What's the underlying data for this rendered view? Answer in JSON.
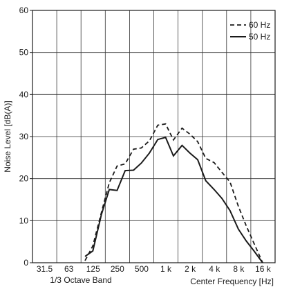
{
  "chart_data": {
    "type": "line",
    "title": "",
    "xlabel": "1/3 Octave Band",
    "xlabel_right": "Center Frequency [Hz]",
    "ylabel": "Noise Level [dB(A)]",
    "ylim": [
      0,
      60
    ],
    "yticks": [
      "0",
      "10",
      "20",
      "30",
      "40",
      "50",
      "60"
    ],
    "x_band_labels": [
      "31.5",
      "63",
      "125",
      "250",
      "500",
      "1 k",
      "2 k",
      "4 k",
      "8 k",
      "16 k"
    ],
    "x_band_frequencies": [
      31.5,
      63,
      125,
      250,
      500,
      1000,
      2000,
      4000,
      8000,
      16000
    ],
    "grid": true,
    "legend_position": "top-right",
    "series": [
      {
        "name": "60 Hz",
        "style": "dashed",
        "color": "#1a1a1a",
        "x": [
          100,
          125,
          160,
          200,
          250,
          315,
          400,
          500,
          630,
          800,
          1000,
          1250,
          1600,
          2000,
          2500,
          3150,
          4000,
          5000,
          6300,
          8000,
          10000,
          12500,
          16000
        ],
        "y": [
          0.5,
          4,
          12,
          19,
          23,
          23.5,
          27,
          27.3,
          29,
          32.7,
          33,
          29.2,
          32,
          30.6,
          28.8,
          24.8,
          23.8,
          21.5,
          19.2,
          13.4,
          8.8,
          4.6,
          0
        ]
      },
      {
        "name": "50 Hz",
        "style": "solid",
        "color": "#1a1a1a",
        "x": [
          100,
          125,
          160,
          200,
          250,
          315,
          400,
          500,
          630,
          800,
          1000,
          1250,
          1600,
          2000,
          2500,
          3150,
          4000,
          5000,
          6300,
          8000,
          10000,
          12500,
          16000
        ],
        "y": [
          1.5,
          2.8,
          11.5,
          17.4,
          17.2,
          21.9,
          22,
          23.7,
          26.1,
          29.3,
          29.8,
          25.4,
          27.9,
          26.1,
          24.5,
          19.5,
          17.4,
          15.3,
          12.4,
          8,
          5.2,
          2.8,
          0
        ]
      }
    ]
  }
}
